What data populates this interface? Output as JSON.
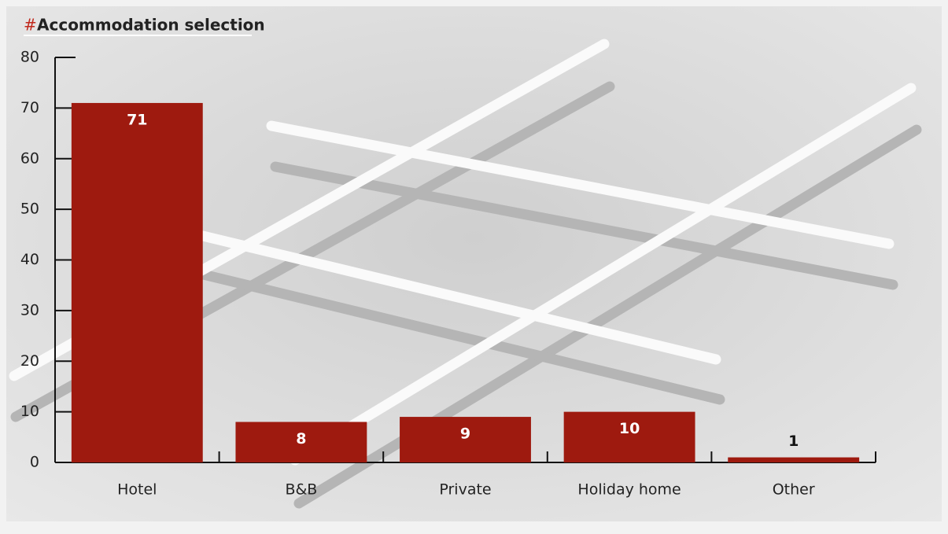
{
  "chart_data": {
    "type": "bar",
    "title_marker": "#",
    "title": "Accommodation selection",
    "categories": [
      "Hotel",
      "B&B",
      "Private",
      "Holiday home",
      "Other"
    ],
    "values": [
      71,
      8,
      9,
      10,
      1
    ],
    "color": "#9e1a0f",
    "ylim": [
      0,
      80
    ],
    "yticks": [
      0,
      10,
      20,
      30,
      40,
      50,
      60,
      70,
      80
    ],
    "grid": false
  }
}
